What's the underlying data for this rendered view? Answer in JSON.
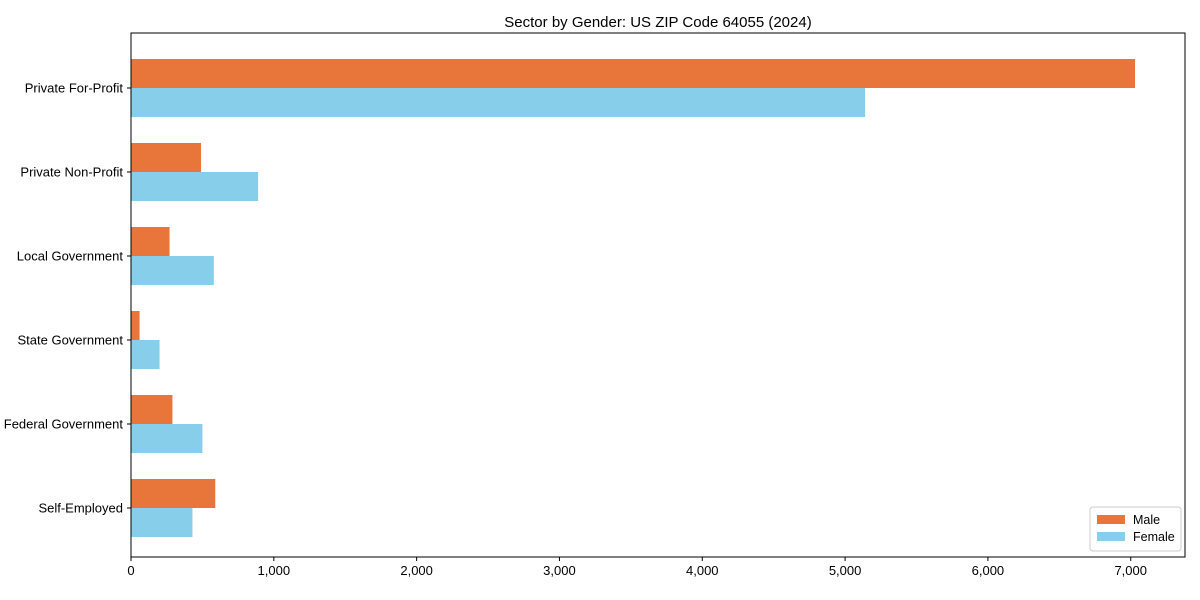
{
  "chart_data": {
    "type": "bar",
    "orientation": "horizontal",
    "title": "Sector by Gender: US ZIP Code 64055 (2024)",
    "categories": [
      "Private For-Profit",
      "Private Non-Profit",
      "Local Government",
      "State Government",
      "Federal Government",
      "Self-Employed"
    ],
    "series": [
      {
        "name": "Male",
        "color": "#E8763B",
        "values": [
          7030,
          490,
          270,
          60,
          290,
          590
        ]
      },
      {
        "name": "Female",
        "color": "#87CEEB",
        "values": [
          5140,
          890,
          580,
          200,
          500,
          430
        ]
      }
    ],
    "xlabel": "",
    "ylabel": "",
    "xlim": [
      0,
      7380
    ],
    "xticks": [
      0,
      1000,
      2000,
      3000,
      4000,
      5000,
      6000,
      7000
    ],
    "xtick_labels": [
      "0",
      "1,000",
      "2,000",
      "3,000",
      "4,000",
      "5,000",
      "6,000",
      "7,000"
    ],
    "grid": false,
    "legend": {
      "position": "lower-right",
      "entries": [
        {
          "label": "Male",
          "color": "#E8763B"
        },
        {
          "label": "Female",
          "color": "#87CEEB"
        }
      ]
    },
    "colors": {
      "axis": "#000000",
      "legend_border": "#cccccc",
      "background": "#ffffff"
    }
  }
}
